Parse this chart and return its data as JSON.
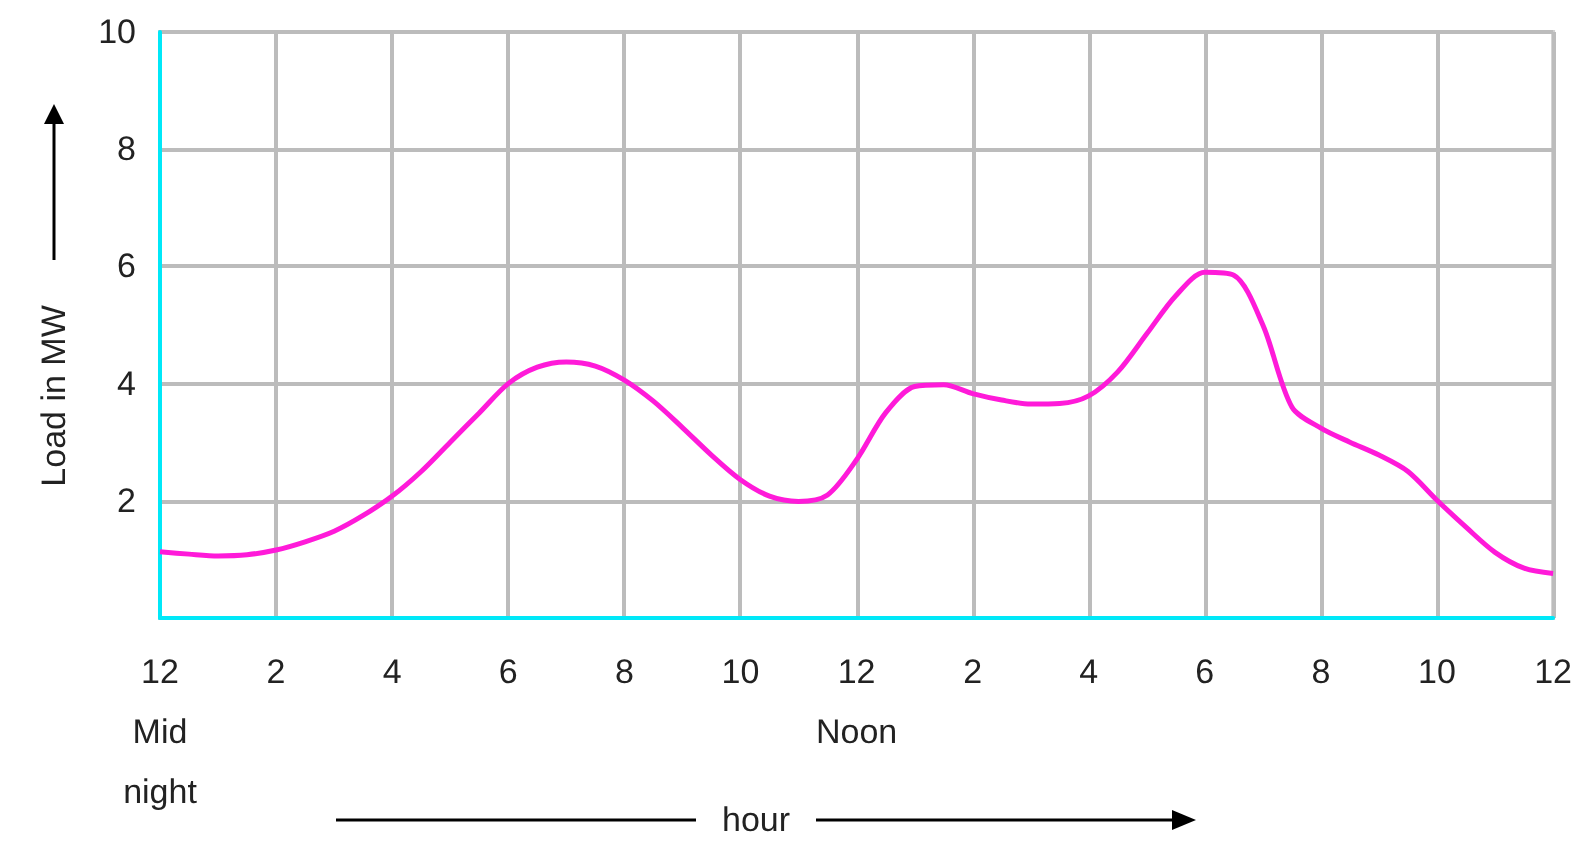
{
  "chart_data": {
    "type": "line",
    "xlabel": "hour",
    "ylabel": "Load in MW",
    "categories": [
      "12\nMid\nnight",
      null,
      null,
      null,
      "2",
      null,
      null,
      null,
      "4",
      null,
      null,
      null,
      "6",
      null,
      null,
      null,
      "8",
      null,
      null,
      null,
      "10",
      null,
      null,
      null,
      "12\nNoon",
      null,
      null,
      null,
      "2",
      null,
      null,
      null,
      "4",
      null,
      null,
      null,
      "6",
      null,
      null,
      null,
      "8",
      null,
      null,
      null,
      "10",
      null,
      null,
      null,
      "12"
    ],
    "series": [
      {
        "color": "#ff1ad9",
        "values": [
          1.13,
          1.09,
          1.06,
          1.08,
          1.16,
          1.3,
          1.48,
          1.75,
          2.08,
          2.5,
          3.0,
          3.5,
          4.0,
          4.28,
          4.37,
          4.3,
          4.06,
          3.7,
          3.25,
          2.78,
          2.36,
          2.08,
          1.99,
          2.1,
          2.7,
          3.5,
          3.95,
          3.98,
          3.83,
          3.72,
          3.65,
          3.66,
          3.79,
          4.2,
          4.85,
          5.5,
          5.9,
          5.85,
          5.0,
          3.6,
          3.24,
          3.0,
          2.78,
          2.5,
          2.01,
          1.55,
          1.12,
          0.85,
          0.76
        ]
      }
    ],
    "ylim": [
      0,
      10
    ],
    "yticks": [
      {
        "value": 0,
        "label": null
      },
      2,
      4,
      6,
      8,
      10
    ],
    "grid": true,
    "marker": "none",
    "line_style": "solid"
  }
}
